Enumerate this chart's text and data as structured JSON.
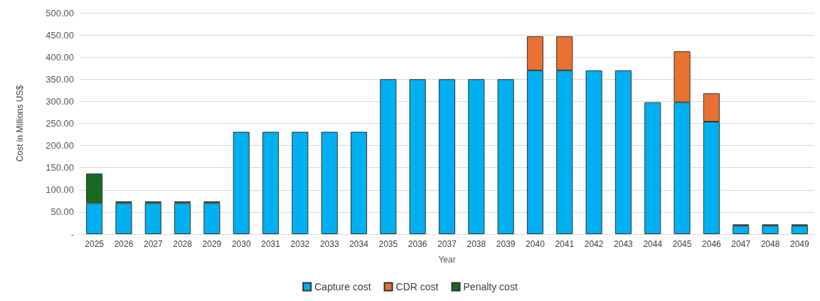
{
  "chart_data": {
    "type": "bar",
    "stacked": true,
    "xlabel": "Year",
    "ylabel": "Cost in Millions US$",
    "categories": [
      "2025",
      "2026",
      "2027",
      "2028",
      "2029",
      "2030",
      "2031",
      "2032",
      "2033",
      "2034",
      "2035",
      "2036",
      "2037",
      "2038",
      "2039",
      "2040",
      "2041",
      "2042",
      "2043",
      "2044",
      "2045",
      "2046",
      "2047",
      "2048",
      "2049"
    ],
    "series": [
      {
        "name": "Capture cost",
        "color": "#00b0f0",
        "values": [
          70,
          70,
          70,
          70,
          70,
          231,
          231,
          231,
          231,
          231,
          350,
          350,
          350,
          350,
          350,
          370,
          370,
          370,
          370,
          298,
          298,
          254,
          19,
          19,
          19
        ]
      },
      {
        "name": "CDR cost",
        "color": "#e97132",
        "values": [
          null,
          null,
          null,
          null,
          null,
          null,
          null,
          null,
          null,
          null,
          null,
          null,
          null,
          null,
          null,
          77,
          77,
          null,
          null,
          null,
          115,
          64,
          null,
          null,
          null
        ]
      },
      {
        "name": "Penalty cost",
        "color": "#196b24",
        "values": [
          67,
          4,
          4,
          4,
          4,
          null,
          null,
          null,
          null,
          null,
          null,
          null,
          null,
          null,
          null,
          null,
          null,
          null,
          null,
          null,
          null,
          null,
          3,
          3,
          3
        ]
      }
    ],
    "ylim": [
      0,
      500
    ],
    "yticks": [
      {
        "value": 0,
        "label": "-"
      },
      {
        "value": 50,
        "label": "50.00"
      },
      {
        "value": 100,
        "label": "100.00"
      },
      {
        "value": 150,
        "label": "150.00"
      },
      {
        "value": 200,
        "label": "200.00"
      },
      {
        "value": 250,
        "label": "250.00"
      },
      {
        "value": 300,
        "label": "300.00"
      },
      {
        "value": 350,
        "label": "350.00"
      },
      {
        "value": 400,
        "label": "400.00"
      },
      {
        "value": 450,
        "label": "450.00"
      },
      {
        "value": 500,
        "label": "500.00"
      }
    ],
    "grid": "y",
    "legend": "bottom"
  }
}
